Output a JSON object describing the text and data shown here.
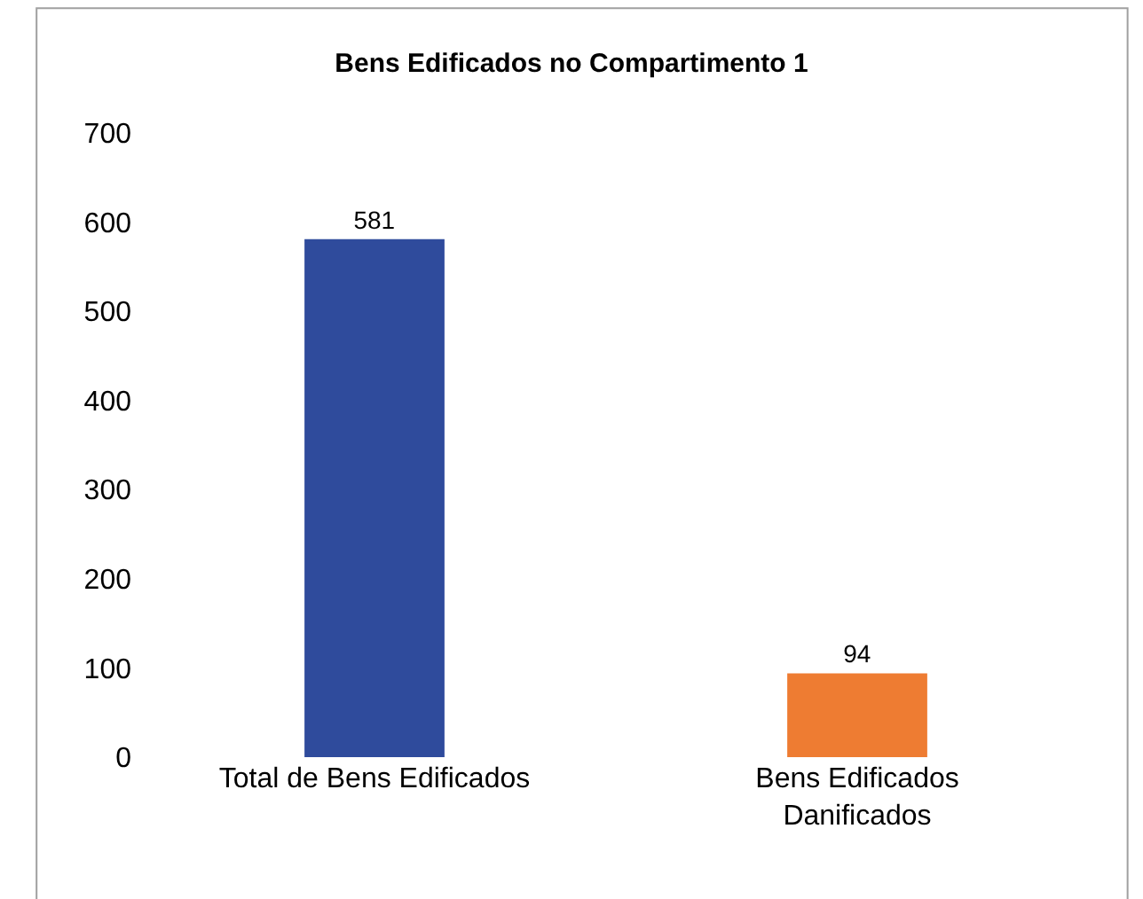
{
  "chart_data": {
    "type": "bar",
    "title": "Bens Edificados no Compartimento 1",
    "categories": [
      "Total de Bens Edificados",
      "Bens Edificados Danificados"
    ],
    "values": [
      581,
      94
    ],
    "colors": [
      "#2f4b9c",
      "#ee7c32"
    ],
    "ylim": [
      0,
      700
    ],
    "yticks": [
      0,
      100,
      200,
      300,
      400,
      500,
      600,
      700
    ],
    "data_labels": true,
    "legend": false
  }
}
